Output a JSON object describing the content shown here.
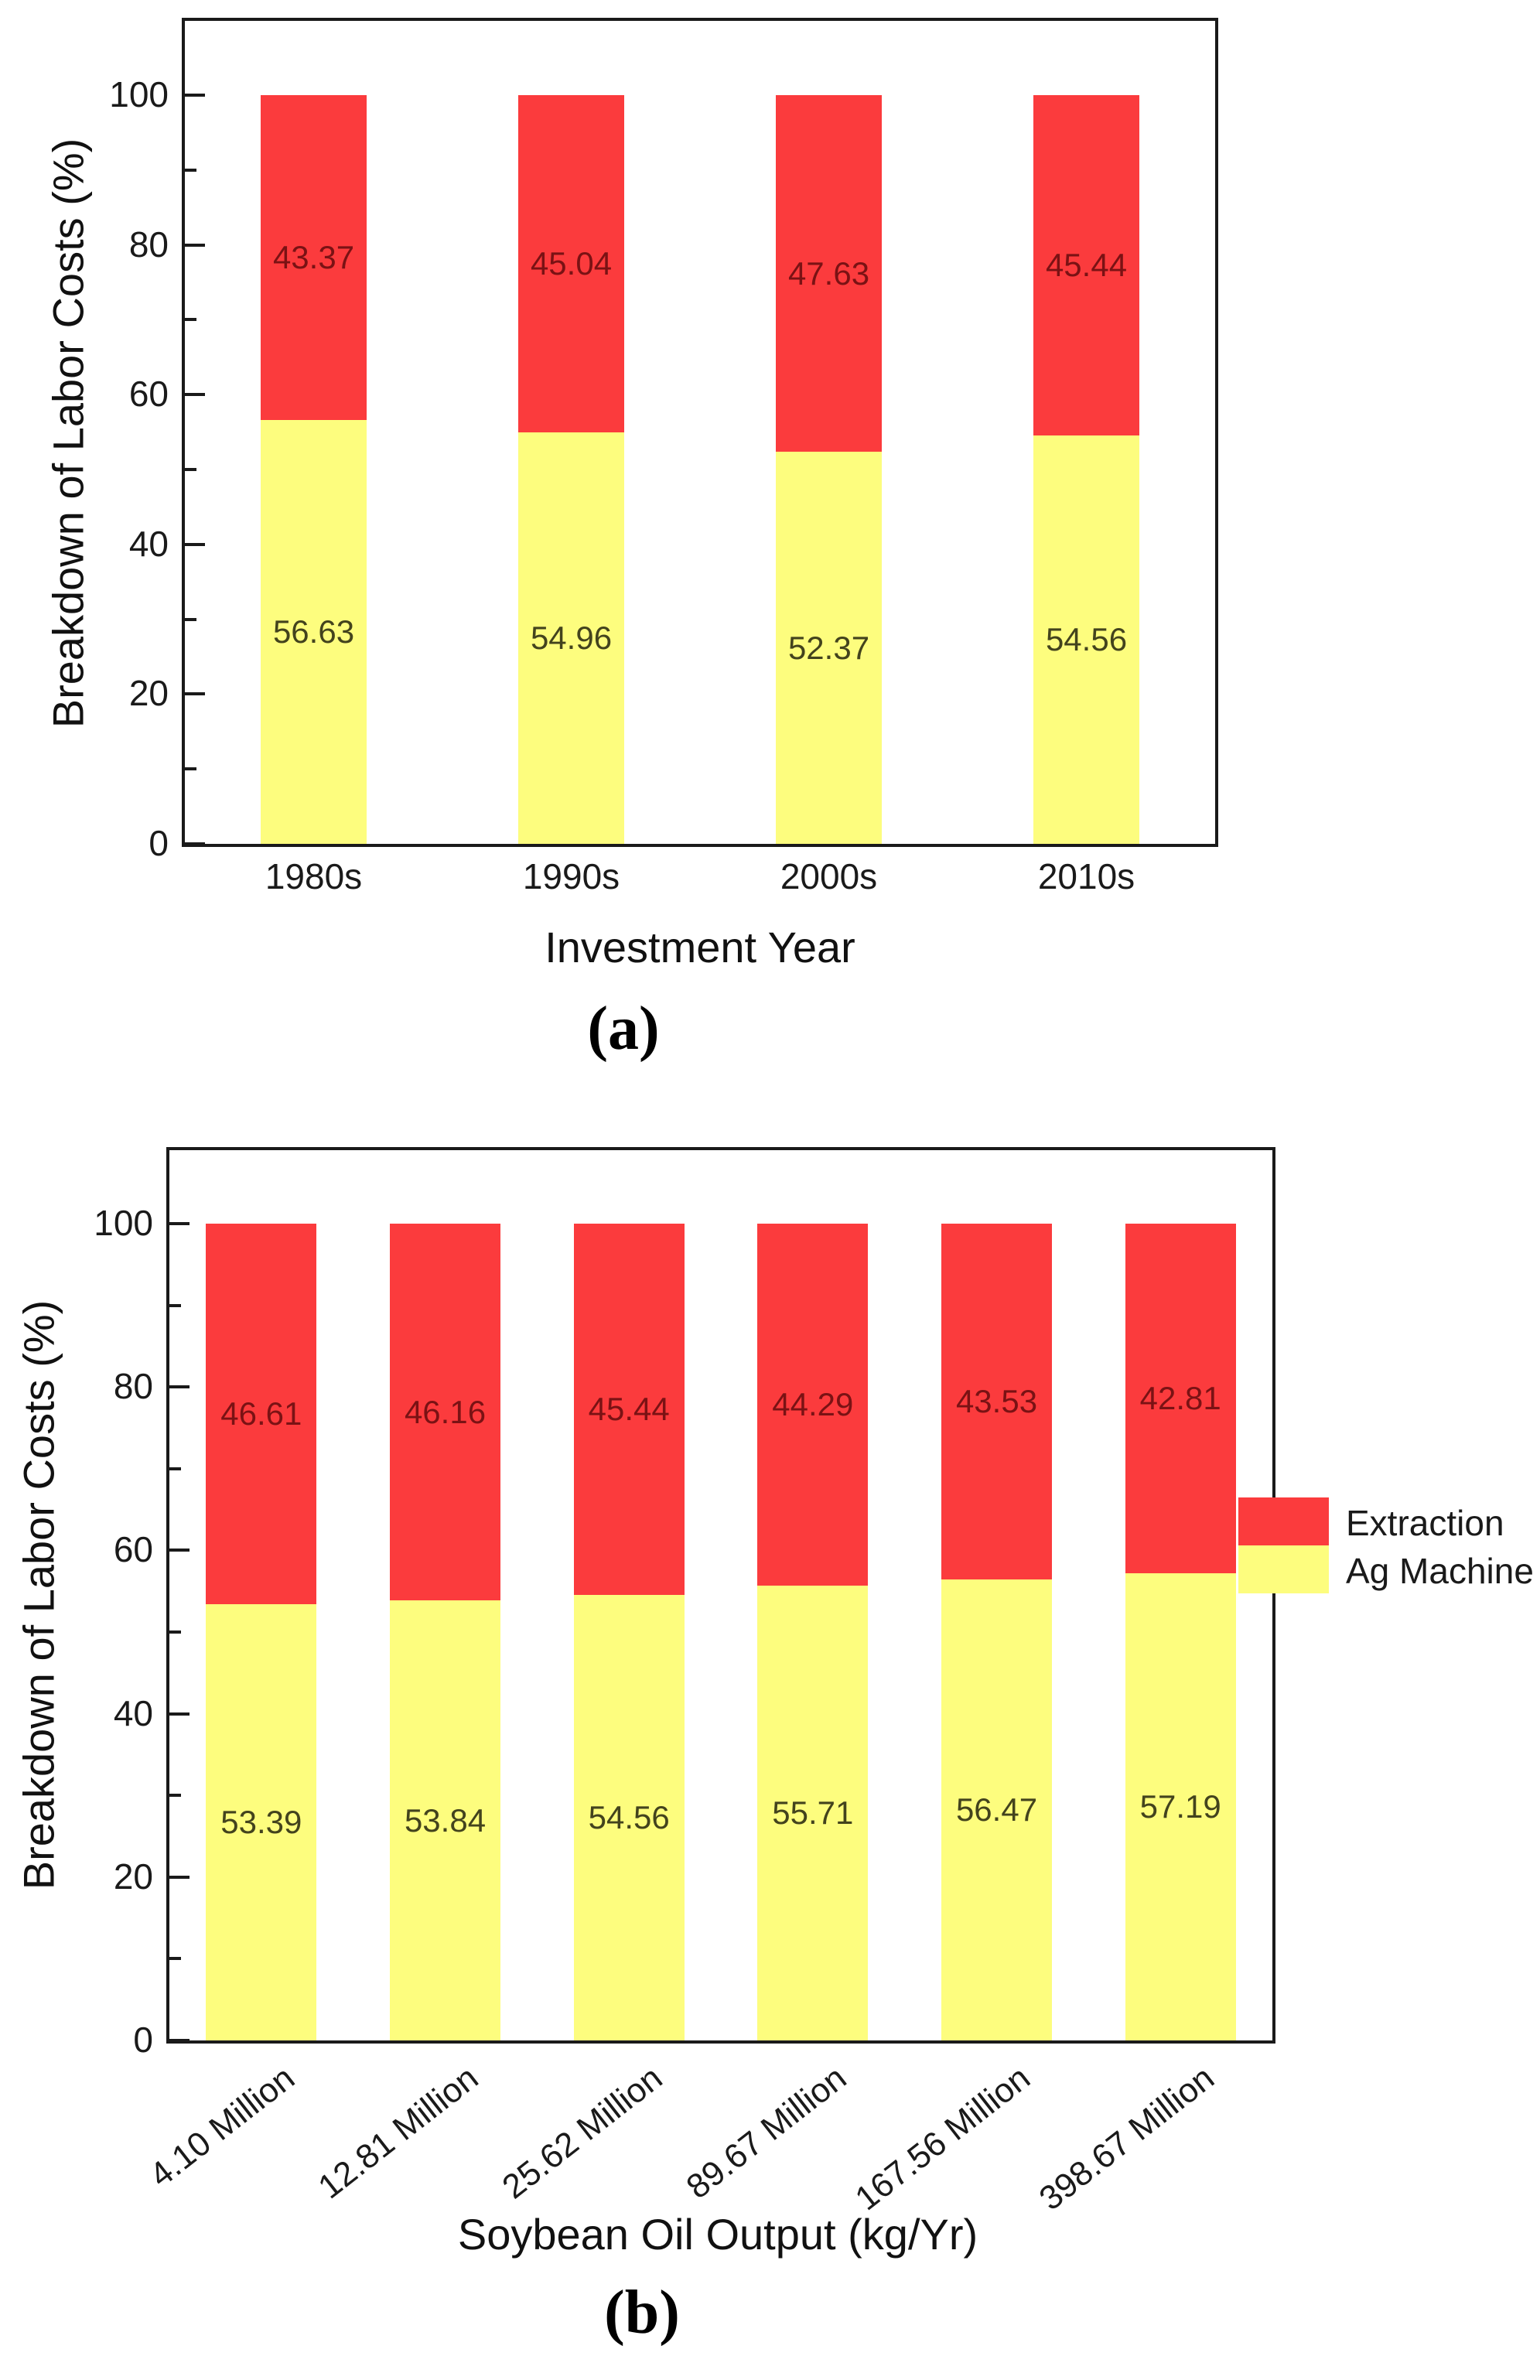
{
  "colors": {
    "extraction": "#fb3b3d",
    "ag_machine": "#fdfd7e",
    "frame": "#1a1a1a",
    "extraction_label": "#7a1214",
    "ag_machine_label": "#43431d"
  },
  "chart_data": [
    {
      "type": "bar",
      "stacked": true,
      "title": "",
      "xlabel": "Investment Year",
      "ylabel": "Breakdown of Labor Costs (%)",
      "caption": "(a)",
      "ylim": [
        0,
        100
      ],
      "yticks_major": [
        0,
        20,
        40,
        60,
        80,
        100
      ],
      "yticks_minor": [
        10,
        30,
        50,
        70,
        90
      ],
      "grid": false,
      "legend_position": "none",
      "categories": [
        "1980s",
        "1990s",
        "2000s",
        "2010s"
      ],
      "series": [
        {
          "name": "Ag Machine",
          "color_key": "ag_machine",
          "label_color_key": "ag_machine_label",
          "values": [
            56.63,
            54.96,
            52.37,
            54.56
          ]
        },
        {
          "name": "Extraction",
          "color_key": "extraction",
          "label_color_key": "extraction_label",
          "values": [
            43.37,
            45.04,
            47.63,
            45.44
          ]
        }
      ]
    },
    {
      "type": "bar",
      "stacked": true,
      "title": "",
      "xlabel": "Soybean Oil Output (kg/Yr)",
      "ylabel": "Breakdown of Labor Costs (%)",
      "caption": "(b)",
      "ylim": [
        0,
        100
      ],
      "yticks_major": [
        0,
        20,
        40,
        60,
        80,
        100
      ],
      "yticks_minor": [
        10,
        30,
        50,
        70,
        90
      ],
      "grid": false,
      "legend_position": "right",
      "legend": [
        {
          "label": "Extraction",
          "color_key": "extraction"
        },
        {
          "label": "Ag Machine",
          "color_key": "ag_machine"
        }
      ],
      "categories": [
        "4.10 Million",
        "12.81 Million",
        "25.62 Million",
        "89.67 Million",
        "167.56 Million",
        "398.67 Million"
      ],
      "series": [
        {
          "name": "Ag Machine",
          "color_key": "ag_machine",
          "label_color_key": "ag_machine_label",
          "values": [
            53.39,
            53.84,
            54.56,
            55.71,
            56.47,
            57.19
          ]
        },
        {
          "name": "Extraction",
          "color_key": "extraction",
          "label_color_key": "extraction_label",
          "values": [
            46.61,
            46.16,
            45.44,
            44.29,
            43.53,
            42.81
          ]
        }
      ]
    }
  ]
}
